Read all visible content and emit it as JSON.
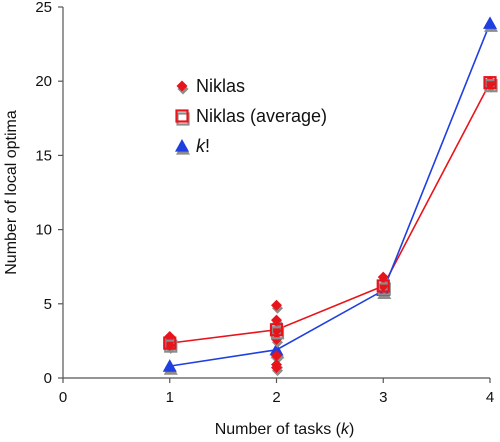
{
  "chart_data": {
    "type": "scatter",
    "xlabel": "Number of tasks (k)",
    "ylabel": "Number of local optima",
    "xlim": [
      0,
      4
    ],
    "ylim": [
      0,
      25
    ],
    "x_ticks": [
      0,
      1,
      2,
      3,
      4
    ],
    "y_ticks": [
      0,
      5,
      10,
      15,
      20,
      25
    ],
    "legend_position": "top-left",
    "series": [
      {
        "name": "Niklas",
        "marker": "diamond",
        "color": "#e8141c",
        "shadow_color": "#8c8c8c",
        "points": [
          {
            "x": 1,
            "y": 2.8
          },
          {
            "x": 1,
            "y": 2.5
          },
          {
            "x": 1,
            "y": 2.2
          },
          {
            "x": 2,
            "y": 4.9
          },
          {
            "x": 2,
            "y": 3.9
          },
          {
            "x": 2,
            "y": 3.2
          },
          {
            "x": 2,
            "y": 2.6
          },
          {
            "x": 2,
            "y": 1.5
          },
          {
            "x": 2,
            "y": 0.9
          },
          {
            "x": 2,
            "y": 0.7
          },
          {
            "x": 3,
            "y": 6.8
          },
          {
            "x": 3,
            "y": 6.2
          },
          {
            "x": 4,
            "y": 20.0
          },
          {
            "x": 4,
            "y": 19.8
          }
        ]
      },
      {
        "name": "Niklas (average)",
        "marker": "square-open",
        "color": "#e8141c",
        "shadow_color": "#8c8c8c",
        "line": true,
        "points": [
          {
            "x": 1,
            "y": 2.35
          },
          {
            "x": 2,
            "y": 3.25
          },
          {
            "x": 3,
            "y": 6.2
          },
          {
            "x": 4,
            "y": 19.9
          }
        ]
      },
      {
        "name": "k!",
        "marker": "triangle",
        "color": "#1f3fe0",
        "shadow_color": "#8c8c8c",
        "line": true,
        "points": [
          {
            "x": 1,
            "y": 0.8
          },
          {
            "x": 2,
            "y": 1.9
          },
          {
            "x": 3,
            "y": 5.9
          },
          {
            "x": 4,
            "y": 23.9
          }
        ]
      }
    ]
  }
}
